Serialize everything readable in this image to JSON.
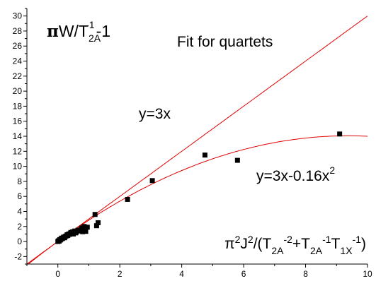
{
  "chart_data": {
    "type": "scatter",
    "xlim": [
      -1,
      10
    ],
    "ylim": [
      -3,
      31
    ],
    "x_ticks": [
      0,
      2,
      4,
      6,
      8,
      10
    ],
    "y_ticks": [
      -2,
      0,
      2,
      4,
      6,
      8,
      10,
      12,
      14,
      16,
      18,
      20,
      22,
      24,
      26,
      28,
      30
    ],
    "grid": false,
    "y_label": {
      "pi": "π",
      "main": "W/T",
      "sub": "2A",
      "sup": "-1",
      "tail": "-1"
    },
    "x_label": {
      "parts": [
        {
          "t": "π",
          "k": "n"
        },
        {
          "t": "2",
          "k": "sup"
        },
        {
          "t": "J",
          "k": "n"
        },
        {
          "t": "2",
          "k": "sup"
        },
        {
          "t": "/(T",
          "k": "n"
        },
        {
          "t": "2A",
          "k": "sub"
        },
        {
          "t": "-2",
          "k": "sup"
        },
        {
          "t": "+T",
          "k": "n"
        },
        {
          "t": "2A",
          "k": "sub"
        },
        {
          "t": "-1",
          "k": "sup"
        },
        {
          "t": "T",
          "k": "n"
        },
        {
          "t": "1X",
          "k": "sub"
        },
        {
          "t": "-1",
          "k": "sup"
        },
        {
          "t": ")",
          "k": "n"
        }
      ]
    },
    "annotations": {
      "title": "Fit for quartets",
      "linear_label": "y=3x",
      "quad_label_main": "y=3x-0.16x",
      "quad_label_sup": "2"
    },
    "series": [
      {
        "type": "scatter",
        "marker": "square",
        "color": "#000000",
        "points": [
          [
            0.0,
            0.0
          ],
          [
            0.02,
            0.1
          ],
          [
            0.04,
            0.05
          ],
          [
            0.06,
            0.25
          ],
          [
            0.08,
            0.2
          ],
          [
            0.1,
            0.3
          ],
          [
            0.12,
            0.45
          ],
          [
            0.15,
            0.4
          ],
          [
            0.18,
            0.55
          ],
          [
            0.2,
            0.6
          ],
          [
            0.22,
            0.5
          ],
          [
            0.25,
            0.7
          ],
          [
            0.28,
            0.75
          ],
          [
            0.3,
            0.9
          ],
          [
            0.32,
            0.8
          ],
          [
            0.35,
            1.0
          ],
          [
            0.38,
            0.95
          ],
          [
            0.4,
            1.05
          ],
          [
            0.42,
            1.2
          ],
          [
            0.45,
            1.1
          ],
          [
            0.48,
            1.3
          ],
          [
            0.5,
            1.0
          ],
          [
            0.52,
            1.25
          ],
          [
            0.55,
            1.4
          ],
          [
            0.58,
            1.15
          ],
          [
            0.6,
            1.3
          ],
          [
            0.65,
            1.5
          ],
          [
            0.7,
            1.4
          ],
          [
            0.75,
            1.6
          ],
          [
            0.78,
            1.8
          ],
          [
            0.8,
            1.3
          ],
          [
            0.82,
            1.7
          ],
          [
            0.85,
            2.0
          ],
          [
            0.88,
            1.5
          ],
          [
            0.9,
            1.35
          ],
          [
            0.95,
            1.9
          ],
          [
            1.2,
            3.6
          ],
          [
            1.25,
            2.1
          ],
          [
            1.3,
            2.5
          ],
          [
            2.25,
            5.6
          ],
          [
            3.05,
            8.1
          ],
          [
            4.75,
            11.5
          ],
          [
            5.8,
            10.8
          ],
          [
            9.1,
            14.3
          ]
        ]
      },
      {
        "type": "line",
        "color": "#e00000",
        "a": 3,
        "b": 0
      },
      {
        "type": "line",
        "color": "#e00000",
        "a": 3,
        "b": -0.16
      }
    ]
  }
}
